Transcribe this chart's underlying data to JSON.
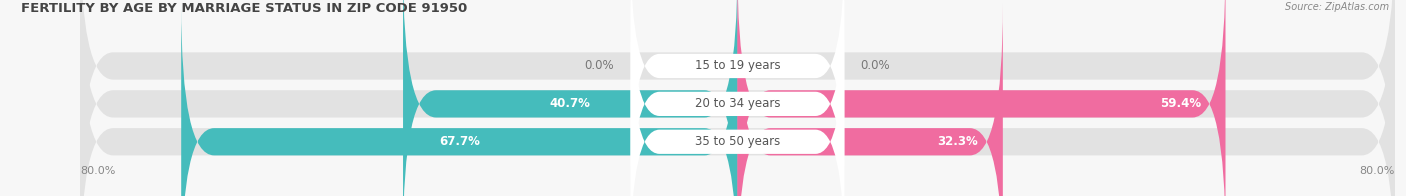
{
  "title": "FERTILITY BY AGE BY MARRIAGE STATUS IN ZIP CODE 91950",
  "source": "Source: ZipAtlas.com",
  "rows": [
    {
      "label": "15 to 19 years",
      "married": 0.0,
      "unmarried": 0.0
    },
    {
      "label": "20 to 34 years",
      "married": 40.7,
      "unmarried": 59.4
    },
    {
      "label": "35 to 50 years",
      "married": 67.7,
      "unmarried": 32.3
    }
  ],
  "x_left_label": "80.0%",
  "x_right_label": "80.0%",
  "married_color": "#45BCBC",
  "unmarried_color": "#F06CA0",
  "bar_bg_color": "#E2E2E2",
  "background_color": "#F7F7F7",
  "max_val": 80.0,
  "title_fontsize": 9.5,
  "label_fontsize": 8.5,
  "value_fontsize": 8.5,
  "tick_fontsize": 8.0
}
